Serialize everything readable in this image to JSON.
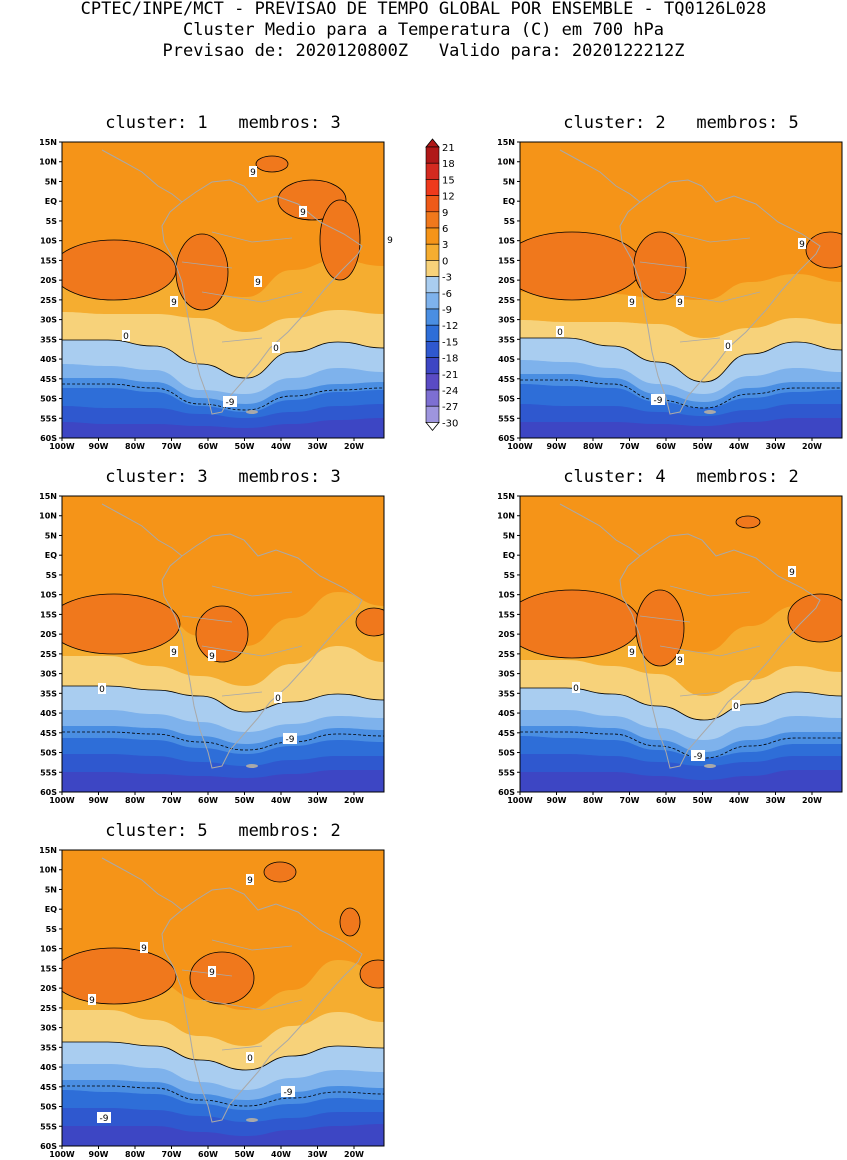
{
  "header": {
    "line1": "CPTEC/INPE/MCT - PREVISAO DE TEMPO GLOBAL POR ENSEMBLE - TQ0126L028",
    "line2": "Cluster Medio para a Temperatura (C) em 700 hPa",
    "line3": "Previsao de: 2020120800Z   Valido para: 2020122212Z"
  },
  "axes": {
    "lat_labels": [
      "15N",
      "10N",
      "5N",
      "EQ",
      "5S",
      "10S",
      "15S",
      "20S",
      "25S",
      "30S",
      "35S",
      "40S",
      "45S",
      "50S",
      "55S",
      "60S"
    ],
    "lon_labels": [
      "100W",
      "90W",
      "80W",
      "70W",
      "60W",
      "50W",
      "40W",
      "30W",
      "20W"
    ]
  },
  "colorbar": {
    "levels": [
      "21",
      "18",
      "15",
      "12",
      "9",
      "6",
      "3",
      "0",
      "-3",
      "-6",
      "-9",
      "-12",
      "-15",
      "-18",
      "-21",
      "-24",
      "-27",
      "-30"
    ],
    "colors": [
      "#b01818",
      "#d42a20",
      "#ee3a1c",
      "#ee5a18",
      "#f0781c",
      "#f59418",
      "#f5ad30",
      "#f7d27a",
      "#a9cdf0",
      "#7eb2ec",
      "#4a8ee2",
      "#2e6ed8",
      "#2f58cf",
      "#3d46c4",
      "#5a4bc4",
      "#7d6fd2",
      "#9e95de",
      "#c9c4ee"
    ]
  },
  "panels": [
    {
      "title": "cluster: 1   membros: 3",
      "labels": [
        {
          "text": "9",
          "kind": "contour9"
        },
        {
          "text": "9",
          "kind": "contour9"
        },
        {
          "text": "9",
          "kind": "contour9"
        },
        {
          "text": "9",
          "kind": "contour9"
        },
        {
          "text": "9",
          "kind": "contour9"
        },
        {
          "text": "0",
          "kind": "contour0"
        },
        {
          "text": "0",
          "kind": "contour0"
        },
        {
          "text": "-9",
          "kind": "contourneg"
        }
      ]
    },
    {
      "title": "cluster: 2   membros: 5",
      "labels": [
        {
          "text": "9",
          "kind": "contour9"
        },
        {
          "text": "9",
          "kind": "contour9"
        },
        {
          "text": "9",
          "kind": "contour9"
        },
        {
          "text": "0",
          "kind": "contour0"
        },
        {
          "text": "0",
          "kind": "contour0"
        },
        {
          "text": "-9",
          "kind": "contourneg"
        }
      ]
    },
    {
      "title": "cluster: 3   membros: 3",
      "labels": [
        {
          "text": "9",
          "kind": "contour9"
        },
        {
          "text": "9",
          "kind": "contour9"
        },
        {
          "text": "0",
          "kind": "contour0"
        },
        {
          "text": "0",
          "kind": "contour0"
        },
        {
          "text": "-9",
          "kind": "contourneg"
        }
      ]
    },
    {
      "title": "cluster: 4   membros: 2",
      "labels": [
        {
          "text": "9",
          "kind": "contour9"
        },
        {
          "text": "9",
          "kind": "contour9"
        },
        {
          "text": "9",
          "kind": "contour9"
        },
        {
          "text": "0",
          "kind": "contour0"
        },
        {
          "text": "0",
          "kind": "contour0"
        },
        {
          "text": "-9",
          "kind": "contourneg"
        }
      ]
    },
    {
      "title": "cluster: 5   membros: 2",
      "labels": [
        {
          "text": "9",
          "kind": "contour9"
        },
        {
          "text": "9",
          "kind": "contour9"
        },
        {
          "text": "9",
          "kind": "contour9"
        },
        {
          "text": "9",
          "kind": "contour9"
        },
        {
          "text": "0",
          "kind": "contour0"
        },
        {
          "text": "-9",
          "kind": "contourneg"
        },
        {
          "text": "-9",
          "kind": "contourneg"
        }
      ]
    }
  ]
}
